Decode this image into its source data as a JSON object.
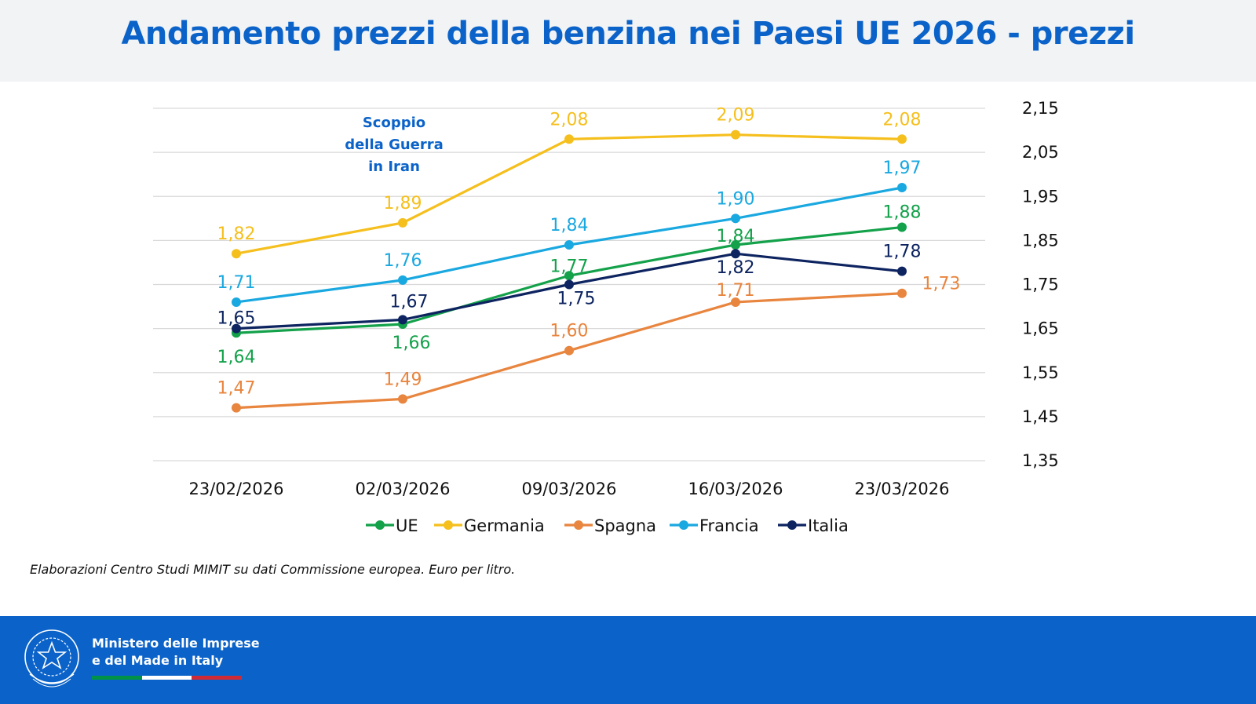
{
  "title": "Andamento prezzi della benzina nei Paesi UE 2026 - prezzi",
  "source_note": "Elaborazioni Centro Studi MIMIT su dati Commissione europea. Euro per litro.",
  "ministry": {
    "line1": "Ministero delle Imprese",
    "line2": "e del Made in Italy"
  },
  "colors": {
    "brand": "#0b63c9",
    "flag_green": "#009246",
    "flag_white": "#ffffff",
    "flag_red": "#ce2b37"
  },
  "chart_data": {
    "type": "line",
    "categories": [
      "23/02/2026",
      "02/03/2026",
      "09/03/2026",
      "16/03/2026",
      "23/03/2026"
    ],
    "ylim": [
      1.35,
      2.15
    ],
    "yticks": [
      "1,35",
      "1,45",
      "1,55",
      "1,65",
      "1,75",
      "1,85",
      "1,95",
      "2,05",
      "2,15"
    ],
    "y_axis_position": "right",
    "grid": true,
    "legend_position": "bottom",
    "annotation": [
      "Scoppio",
      "della Guerra",
      "in Iran"
    ],
    "series": [
      {
        "name": "UE",
        "color": "#13a14a",
        "values": [
          1.64,
          1.66,
          1.77,
          1.84,
          1.88
        ],
        "labels": [
          "1,64",
          "1,66",
          "1,77",
          "1,84",
          "1,88"
        ]
      },
      {
        "name": "Germania",
        "color": "#f5bf1d",
        "values": [
          1.82,
          1.89,
          2.08,
          2.09,
          2.08
        ],
        "labels": [
          "1,82",
          "1,89",
          "2,08",
          "2,09",
          "2,08"
        ]
      },
      {
        "name": "Spagna",
        "color": "#e8853e",
        "values": [
          1.47,
          1.49,
          1.6,
          1.71,
          1.73
        ],
        "labels": [
          "1,47",
          "1,49",
          "1,60",
          "1,71",
          "1,73"
        ]
      },
      {
        "name": "Francia",
        "color": "#1aa8e0",
        "values": [
          1.71,
          1.76,
          1.84,
          1.9,
          1.97
        ],
        "labels": [
          "1,71",
          "1,76",
          "1,84",
          "1,90",
          "1,97"
        ]
      },
      {
        "name": "Italia",
        "color": "#0d2460",
        "values": [
          1.65,
          1.67,
          1.75,
          1.82,
          1.78
        ],
        "labels": [
          "1,65",
          "1,67",
          "1,75",
          "1,82",
          "1,78"
        ]
      }
    ]
  }
}
